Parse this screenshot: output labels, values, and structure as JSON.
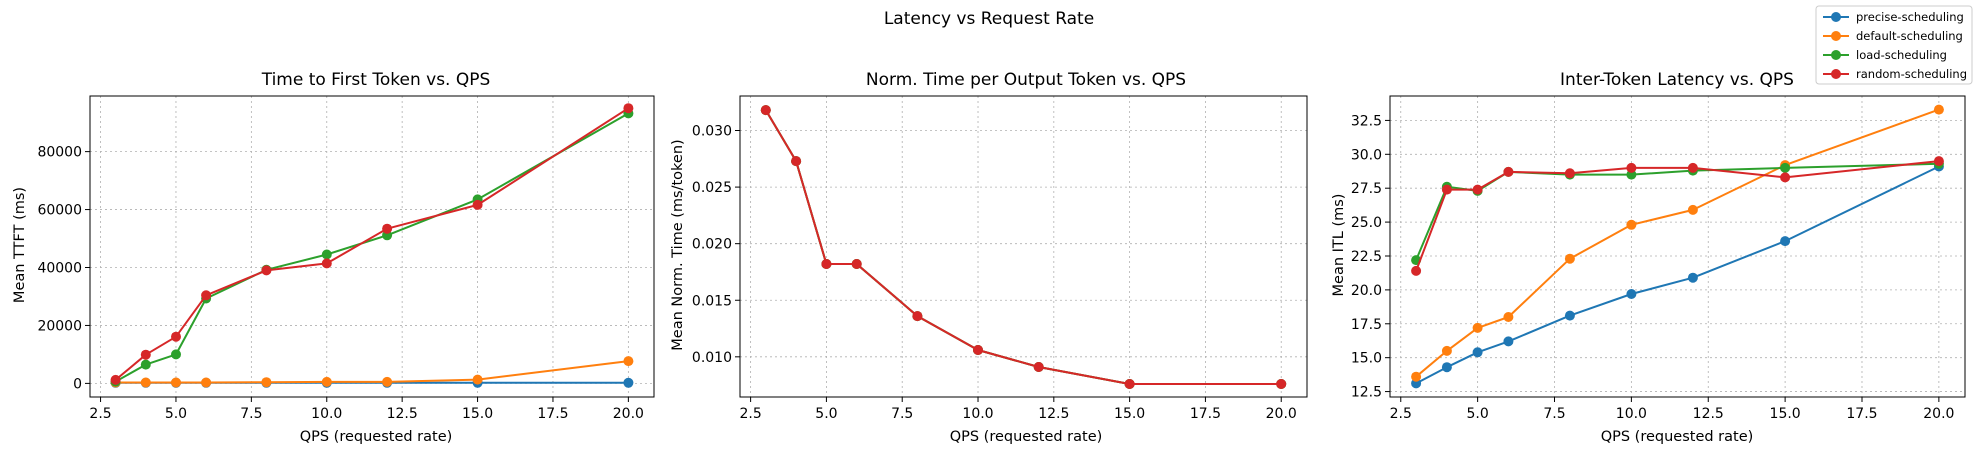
{
  "figure": {
    "suptitle": "Latency vs Request Rate"
  },
  "legend": {
    "placement": "top-right",
    "entries": [
      {
        "name": "precise-scheduling",
        "color": "#1f77b4"
      },
      {
        "name": "default-scheduling",
        "color": "#ff7f0e"
      },
      {
        "name": "load-scheduling",
        "color": "#2ca02c"
      },
      {
        "name": "random-scheduling",
        "color": "#d62728"
      }
    ]
  },
  "chart_data": [
    {
      "type": "line",
      "title": "Time to First Token vs. QPS",
      "xlabel": "QPS (requested rate)",
      "ylabel": "Mean TTFT (ms)",
      "xlim": [
        2.15,
        20.85
      ],
      "ylim": [
        -4700,
        99200
      ],
      "xticks": [
        2.5,
        5.0,
        7.5,
        10.0,
        12.5,
        15.0,
        17.5,
        20.0
      ],
      "xtick_labels": [
        "2.5",
        "5.0",
        "7.5",
        "10.0",
        "12.5",
        "15.0",
        "17.5",
        "20.0"
      ],
      "yticks": [
        0,
        20000,
        40000,
        60000,
        80000
      ],
      "ytick_labels": [
        "0",
        "20000",
        "40000",
        "60000",
        "80000"
      ],
      "grid": true,
      "x": [
        3,
        4,
        5,
        6,
        8,
        10,
        12,
        15,
        20
      ],
      "series": [
        {
          "name": "precise-scheduling",
          "color": "#1f77b4",
          "values": [
            200,
            200,
            200,
            200,
            200,
            200,
            200,
            200,
            200
          ]
        },
        {
          "name": "default-scheduling",
          "color": "#ff7f0e",
          "values": [
            300,
            300,
            300,
            300,
            400,
            500,
            500,
            1300,
            7700
          ]
        },
        {
          "name": "load-scheduling",
          "color": "#2ca02c",
          "values": [
            600,
            6500,
            10000,
            29300,
            39200,
            44500,
            51100,
            63500,
            93200
          ]
        },
        {
          "name": "random-scheduling",
          "color": "#d62728",
          "values": [
            1200,
            9900,
            16100,
            30400,
            39000,
            41400,
            53400,
            61600,
            95000
          ]
        }
      ]
    },
    {
      "type": "line",
      "title": "Norm. Time per Output Token vs. QPS",
      "xlabel": "QPS (requested rate)",
      "ylabel": "Mean Norm. Time (ms/token)",
      "xlim": [
        2.15,
        20.85
      ],
      "ylim": [
        0.00645,
        0.03305
      ],
      "xticks": [
        2.5,
        5.0,
        7.5,
        10.0,
        12.5,
        15.0,
        17.5,
        20.0
      ],
      "xtick_labels": [
        "2.5",
        "5.0",
        "7.5",
        "10.0",
        "12.5",
        "15.0",
        "17.5",
        "20.0"
      ],
      "yticks": [
        0.01,
        0.015,
        0.02,
        0.025,
        0.03
      ],
      "ytick_labels": [
        "0.010",
        "0.015",
        "0.020",
        "0.025",
        "0.030"
      ],
      "grid": true,
      "x": [
        3,
        4,
        5,
        6,
        8,
        10,
        12,
        15,
        20
      ],
      "series": [
        {
          "name": "precise-scheduling",
          "color": "#1f77b4",
          "values": [
            0.0318,
            0.0273,
            0.0182,
            0.0182,
            0.0136,
            0.0106,
            0.0091,
            0.0076,
            0.0076
          ]
        },
        {
          "name": "default-scheduling",
          "color": "#ff7f0e",
          "values": [
            0.0318,
            0.0273,
            0.0182,
            0.0182,
            0.0136,
            0.0106,
            0.0091,
            0.0076,
            0.0076
          ]
        },
        {
          "name": "load-scheduling",
          "color": "#2ca02c",
          "values": [
            0.0318,
            0.0273,
            0.0182,
            0.0182,
            0.0136,
            0.0106,
            0.0091,
            0.0076,
            0.0076
          ]
        },
        {
          "name": "random-scheduling",
          "color": "#d62728",
          "values": [
            0.0318,
            0.0273,
            0.0182,
            0.0182,
            0.0136,
            0.0106,
            0.0091,
            0.0076,
            0.0076
          ]
        }
      ]
    },
    {
      "type": "line",
      "title": "Inter-Token Latency vs. QPS",
      "xlabel": "QPS (requested rate)",
      "ylabel": "Mean ITL (ms)",
      "xlim": [
        2.15,
        20.85
      ],
      "ylim": [
        12.1,
        34.3
      ],
      "xticks": [
        2.5,
        5.0,
        7.5,
        10.0,
        12.5,
        15.0,
        17.5,
        20.0
      ],
      "xtick_labels": [
        "2.5",
        "5.0",
        "7.5",
        "10.0",
        "12.5",
        "15.0",
        "17.5",
        "20.0"
      ],
      "yticks": [
        12.5,
        15.0,
        17.5,
        20.0,
        22.5,
        25.0,
        27.5,
        30.0,
        32.5
      ],
      "ytick_labels": [
        "12.5",
        "15.0",
        "17.5",
        "20.0",
        "22.5",
        "25.0",
        "27.5",
        "30.0",
        "32.5"
      ],
      "grid": true,
      "x": [
        3,
        4,
        5,
        6,
        8,
        10,
        12,
        15,
        20
      ],
      "series": [
        {
          "name": "precise-scheduling",
          "color": "#1f77b4",
          "values": [
            13.1,
            14.3,
            15.4,
            16.2,
            18.1,
            19.7,
            20.9,
            23.6,
            29.1
          ]
        },
        {
          "name": "default-scheduling",
          "color": "#ff7f0e",
          "values": [
            13.6,
            15.5,
            17.2,
            18.0,
            22.3,
            24.8,
            25.9,
            29.2,
            33.3
          ]
        },
        {
          "name": "load-scheduling",
          "color": "#2ca02c",
          "values": [
            22.2,
            27.6,
            27.3,
            28.7,
            28.5,
            28.5,
            28.8,
            29.0,
            29.3
          ]
        },
        {
          "name": "random-scheduling",
          "color": "#d62728",
          "values": [
            21.4,
            27.4,
            27.4,
            28.7,
            28.6,
            29.0,
            29.0,
            28.3,
            29.5
          ]
        }
      ]
    }
  ]
}
